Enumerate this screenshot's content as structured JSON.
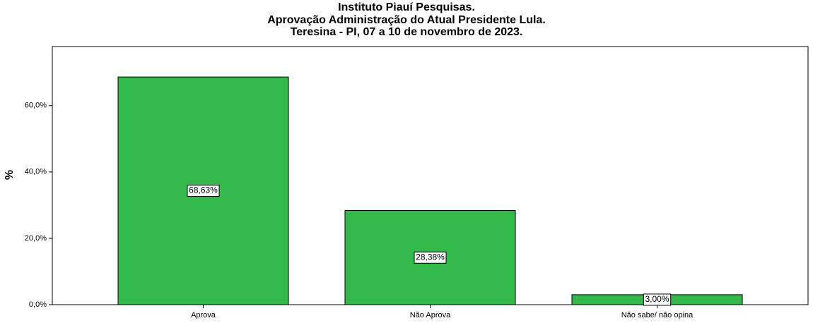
{
  "chart_data": {
    "type": "bar",
    "title": [
      "Instituto Piauí Pesquisas.",
      "Aprovação Administração do Atual Presidente Lula.",
      "Teresina - PI, 07 a 10 de novembro de 2023."
    ],
    "y_label": "%",
    "categories": [
      "Aprova",
      "Não Aprova",
      "Não sabe/ não opina"
    ],
    "values": [
      68.63,
      28.38,
      3.0
    ],
    "value_labels": [
      "68,63%",
      "28,38%",
      "3,00%"
    ],
    "color": "#33b84a",
    "ylim": [
      0,
      77.8
    ],
    "yticks": [
      {
        "value": 0,
        "label": "0,0%"
      },
      {
        "value": 20,
        "label": "20,0%"
      },
      {
        "value": 40,
        "label": "40,0%"
      },
      {
        "value": 60,
        "label": "60,0%"
      }
    ],
    "grid": false
  }
}
